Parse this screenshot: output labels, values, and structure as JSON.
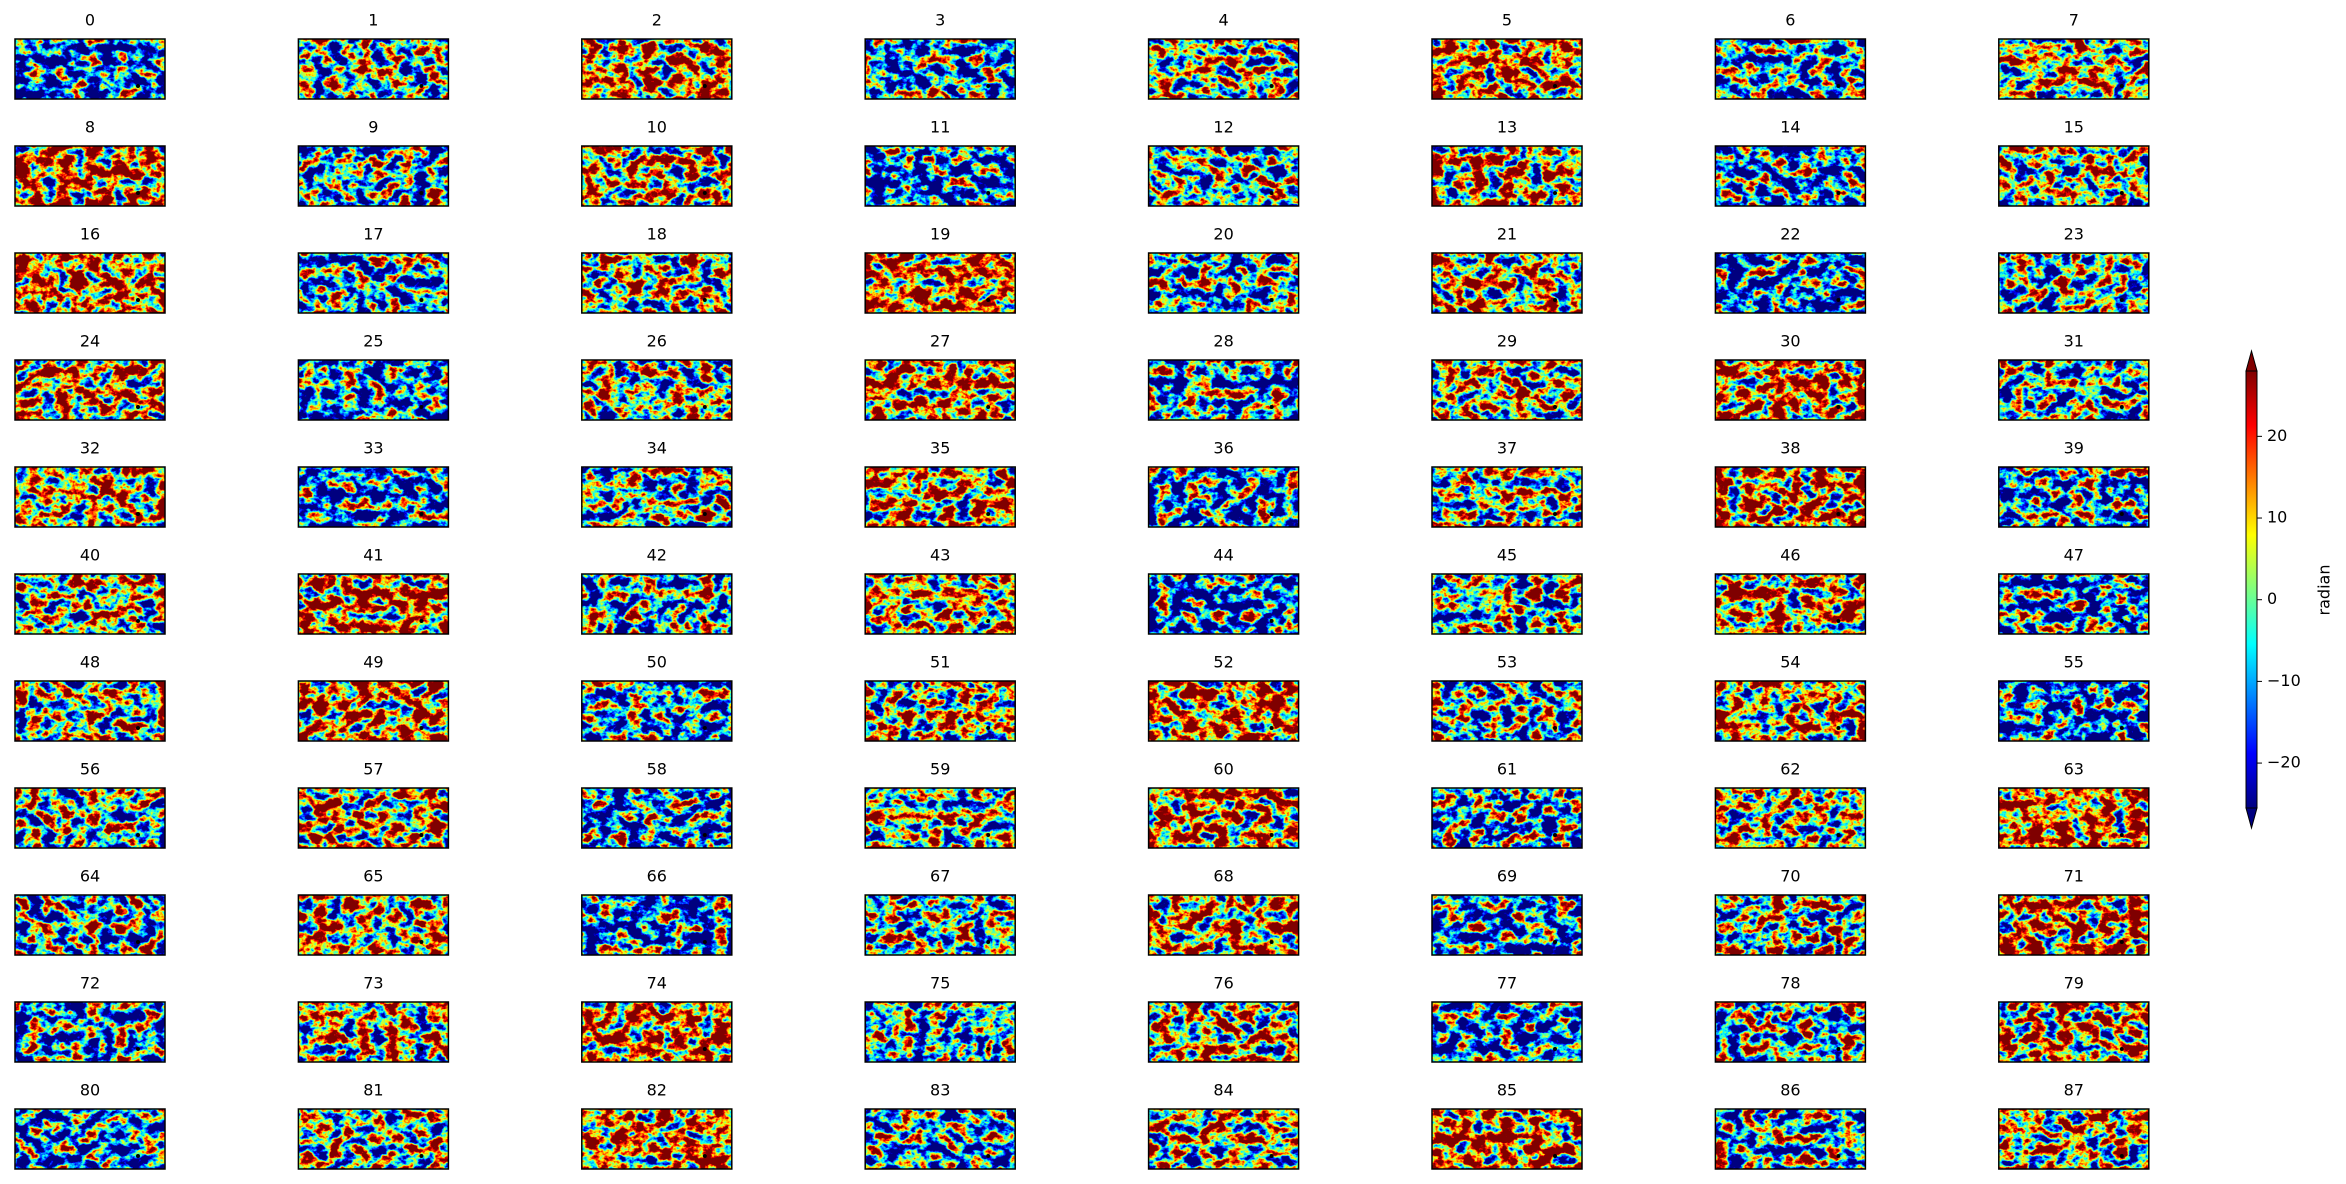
{
  "chart_data": {
    "type": "heatmap-grid",
    "panels": [
      "0",
      "1",
      "2",
      "3",
      "4",
      "5",
      "6",
      "7",
      "8",
      "9",
      "10",
      "11",
      "12",
      "13",
      "14",
      "15",
      "16",
      "17",
      "18",
      "19",
      "20",
      "21",
      "22",
      "23",
      "24",
      "25",
      "26",
      "27",
      "28",
      "29",
      "30",
      "31",
      "32",
      "33",
      "34",
      "35",
      "36",
      "37",
      "38",
      "39",
      "40",
      "41",
      "42",
      "43",
      "44",
      "45",
      "46",
      "47",
      "48",
      "49",
      "50",
      "51",
      "52",
      "53",
      "54",
      "55",
      "56",
      "57",
      "58",
      "59",
      "60",
      "61",
      "62",
      "63",
      "64",
      "65",
      "66",
      "67",
      "68",
      "69",
      "70",
      "71",
      "72",
      "73",
      "74",
      "75",
      "76",
      "77",
      "78",
      "79",
      "80",
      "81",
      "82",
      "83",
      "84",
      "85",
      "86",
      "87"
    ],
    "colorbar": {
      "label": "radian",
      "cmap": "jet",
      "lim": [
        -25.5,
        28
      ],
      "ticks": [
        {
          "value": -20,
          "label": "−20"
        },
        {
          "value": -10,
          "label": "−10"
        },
        0,
        10,
        20
      ]
    }
  }
}
